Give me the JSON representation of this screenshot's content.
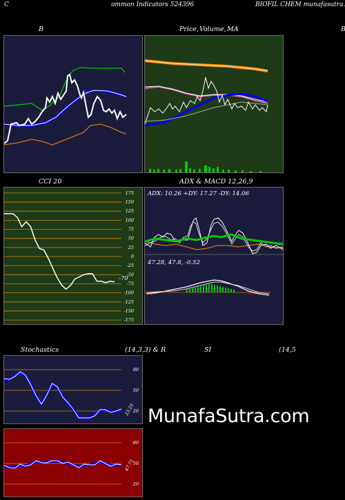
{
  "header": {
    "left_text": "C",
    "center_text": "ommon  Indicators 524396",
    "right_text": "BIOFIL CHEM munafasutra.in"
  },
  "panels": {
    "bb_title": "B",
    "price_title_a": "Price,",
    "price_title_b": "Volume,",
    "price_title_c": "MA",
    "cci_title": "CCI 20",
    "adx_title": "ADX  & MACD 12,26,9",
    "adx_label": "ADX: 10.26   +DY: 17.27 -DY: 14.06",
    "macd_label": "47.28,  47.8,  -0.52",
    "cci_value": "-70",
    "stoch_title_a": "Stochastics",
    "stoch_title_b": "(14,3,3) & R",
    "stoch_title_c": "SI",
    "stoch_title_d": "(14,5",
    "stoch_value": "23.25",
    "rsi_value": "47.75",
    "right_edge_b": "B"
  },
  "watermark": "MunafaSutra.com",
  "colors": {
    "navy_bg": "#1b1c3b",
    "green_bg": "#1e3a17",
    "red_bg": "#8b0000",
    "orange": "#ff8c00",
    "blue": "#0000ff",
    "green": "#00cc00"
  },
  "chart_data": [
    {
      "type": "line",
      "name": "bollinger",
      "series": [
        {
          "values": [
            -0.3,
            -0.35,
            -0.3,
            -0.35,
            -0.4,
            -0.35,
            -0.4,
            -0.45,
            -0.5,
            -0.5,
            -0.45,
            -0.5,
            -0.55,
            -0.55,
            -0.45,
            -0.5,
            -0.55,
            -0.6,
            -0.6,
            -0.55,
            -0.5,
            -0.45,
            -0.5,
            -0.55,
            -0.6,
            -0.65,
            -0.6,
            -0.6,
            -0.55,
            -0.6
          ]
        }
      ]
    },
    {
      "type": "line",
      "name": "cci",
      "yticks": [
        175,
        150,
        125,
        100,
        75,
        50,
        25,
        0,
        -25,
        -50,
        -75,
        -100,
        -125,
        -150,
        -175
      ],
      "values": [
        118,
        118,
        118,
        108,
        82,
        96,
        82,
        46,
        22,
        18,
        -5,
        -32,
        -58,
        -78,
        -90,
        -80,
        -62,
        -56,
        -50,
        -47,
        -47,
        -68,
        -68,
        -72,
        -68,
        -70
      ],
      "ylim": [
        -190,
        190
      ]
    },
    {
      "type": "line",
      "name": "stochastics",
      "yticks": [
        80,
        50,
        20
      ],
      "values": [
        65,
        66,
        72,
        75,
        72,
        60,
        40,
        30,
        45,
        58,
        55,
        42,
        30,
        22,
        12,
        8,
        10,
        15,
        20,
        22,
        20,
        18,
        23
      ],
      "ylim": [
        0,
        100
      ]
    },
    {
      "type": "line",
      "name": "rsi",
      "yticks": [
        80,
        50,
        20
      ],
      "values": [
        45,
        44,
        45,
        47,
        46,
        50,
        52,
        51,
        53,
        52,
        54,
        52,
        50,
        48,
        46,
        47,
        48,
        50,
        52,
        50,
        48,
        47,
        48
      ],
      "ylim": [
        0,
        100
      ]
    }
  ]
}
